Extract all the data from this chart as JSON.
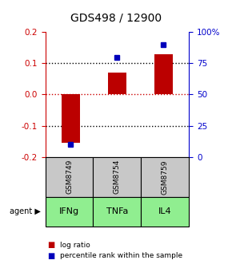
{
  "title": "GDS498 / 12900",
  "samples": [
    "GSM8749",
    "GSM8754",
    "GSM8759"
  ],
  "agents": [
    "IFNg",
    "TNFa",
    "IL4"
  ],
  "log_ratios": [
    -0.155,
    0.07,
    0.13
  ],
  "percentile_ranks": [
    10.0,
    80.0,
    90.0
  ],
  "ylim_left": [
    -0.2,
    0.2
  ],
  "ylim_right": [
    0,
    100
  ],
  "left_ticks": [
    -0.2,
    -0.1,
    0.0,
    0.1,
    0.2
  ],
  "right_ticks": [
    0,
    25,
    50,
    75,
    100
  ],
  "right_tick_labels": [
    "0",
    "25",
    "50",
    "75",
    "100%"
  ],
  "hlines_black": [
    -0.1,
    0.1
  ],
  "hline_red": 0.0,
  "bar_color": "#bb0000",
  "dot_color": "#0000bb",
  "sample_box_color": "#c8c8c8",
  "agent_box_color": "#90ee90",
  "title_color": "#000000",
  "left_axis_color": "#cc0000",
  "right_axis_color": "#0000cc"
}
